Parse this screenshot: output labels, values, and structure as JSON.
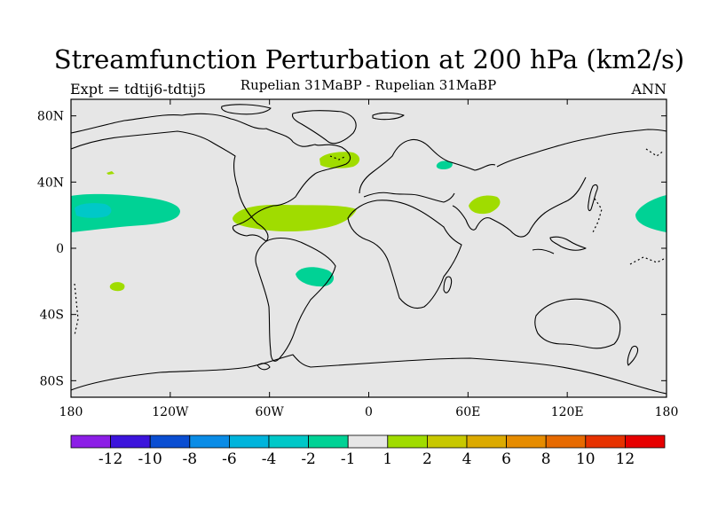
{
  "title": "Streamfunction Perturbation at 200 hPa (km2/s)",
  "left_subtitle": "Expt = tdtij6-tdtij5",
  "center_subtitle": "Rupelian  31MaBP - Rupelian  31MaBP",
  "right_subtitle": "ANN",
  "map": {
    "background_color": "#e6e6e6",
    "projection": "cylindrical-equidistant",
    "lon_range": [
      -180,
      180
    ],
    "lat_range": [
      -90,
      90
    ],
    "x_ticks": [
      {
        "lon": -180,
        "label": "180"
      },
      {
        "lon": -120,
        "label": "120W"
      },
      {
        "lon": -60,
        "label": "60W"
      },
      {
        "lon": 0,
        "label": "0"
      },
      {
        "lon": 60,
        "label": "60E"
      },
      {
        "lon": 120,
        "label": "120E"
      },
      {
        "lon": 180,
        "label": "180"
      }
    ],
    "y_ticks": [
      {
        "lat": 80,
        "label": "80N"
      },
      {
        "lat": 40,
        "label": "40N"
      },
      {
        "lat": 0,
        "label": "0"
      },
      {
        "lat": -40,
        "label": "40S"
      },
      {
        "lat": -80,
        "label": "80S"
      }
    ],
    "anomaly_regions": [
      {
        "name": "north-pacific-east-negative",
        "level": "-2 to -1",
        "color": "#00d295"
      },
      {
        "name": "north-pacific-east-core",
        "level": "-4 to -2",
        "color": "#00c8c8"
      },
      {
        "name": "tropical-atlantic-positive",
        "level": "1 to 2",
        "color": "#a0dc00"
      },
      {
        "name": "north-atlantic-positive",
        "level": "1 to 2",
        "color": "#a0dc00"
      },
      {
        "name": "arabian-sea-positive",
        "level": "1 to 2",
        "color": "#a0dc00"
      },
      {
        "name": "black-sea-negative",
        "level": "-2 to -1",
        "color": "#00d295"
      },
      {
        "name": "south-atlantic-negative",
        "level": "-2 to -1",
        "color": "#00d295"
      },
      {
        "name": "south-pacific-positive",
        "level": "1 to 2",
        "color": "#a0dc00"
      },
      {
        "name": "west-pacific-negative",
        "level": "-2 to -1",
        "color": "#00d295"
      }
    ]
  },
  "colorbar": {
    "colors": [
      "#8c1ee6",
      "#3c14dc",
      "#0a4ed2",
      "#0a8ce6",
      "#00b4dc",
      "#00c8c8",
      "#00d295",
      "#e6e6e6",
      "#a0dc00",
      "#c8c800",
      "#dcaa00",
      "#e68c00",
      "#e66a00",
      "#e63200",
      "#e60000"
    ],
    "labels": [
      "-12",
      "-10",
      "-8",
      "-6",
      "-4",
      "-2",
      "-1",
      "1",
      "2",
      "4",
      "6",
      "8",
      "10",
      "12"
    ]
  }
}
